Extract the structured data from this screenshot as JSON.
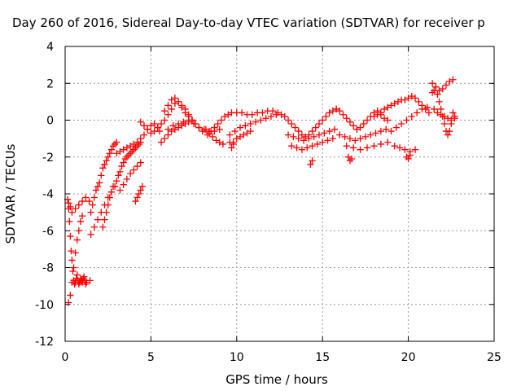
{
  "chart_data": {
    "type": "scatter",
    "title": "Day 260 of 2016, Sidereal Day-to-day VTEC variation (SDTVAR) for receiver p",
    "xlabel": "GPS time / hours",
    "ylabel": "SDTVAR / TECUs",
    "xlim": [
      0,
      25
    ],
    "ylim": [
      -12,
      4
    ],
    "xticks": [
      0,
      5,
      10,
      15,
      20,
      25
    ],
    "yticks": [
      -12,
      -10,
      -8,
      -6,
      -4,
      -2,
      0,
      2,
      4
    ],
    "xtick_labels": [
      "0",
      "5",
      "10",
      "15",
      "20",
      "25"
    ],
    "ytick_labels": [
      "-12",
      "-10",
      "-8",
      "-6",
      "-4",
      "-2",
      "0",
      "2",
      "4"
    ],
    "grid": true,
    "marker": "+",
    "color": "#ff0000",
    "series": [
      {
        "name": "SDTVAR",
        "x": [
          0.15,
          0.2,
          0.25,
          0.3,
          0.35,
          0.4,
          0.45,
          0.5,
          0.55,
          0.6,
          0.65,
          0.7,
          0.75,
          0.8,
          0.85,
          0.9,
          0.95,
          1.0,
          1.05,
          1.1,
          1.15,
          1.2,
          1.25,
          0.2,
          0.3,
          0.4,
          0.5,
          0.6,
          0.7,
          0.8,
          0.9,
          1.0,
          0.2,
          0.3,
          0.4,
          0.6,
          0.8,
          1.0,
          1.2,
          1.4,
          1.45,
          1.5,
          1.6,
          1.7,
          1.8,
          1.9,
          2.0,
          2.1,
          2.2,
          2.3,
          2.4,
          2.5,
          2.6,
          2.7,
          2.8,
          2.9,
          3.0,
          1.5,
          1.7,
          1.9,
          2.1,
          2.3,
          2.5,
          2.7,
          2.9,
          2.2,
          2.3,
          2.4,
          2.5,
          2.6,
          2.7,
          2.8,
          3.0,
          3.1,
          3.2,
          3.3,
          3.4,
          3.5,
          3.6,
          3.7,
          3.8,
          3.9,
          4.0,
          4.1,
          4.2,
          4.3,
          4.4,
          3.2,
          3.4,
          3.6,
          3.8,
          4.0,
          4.2,
          4.4,
          3.0,
          3.2,
          3.4,
          3.6,
          3.8,
          4.0,
          4.2,
          4.4,
          4.6,
          4.8,
          5.0,
          5.2,
          5.4,
          5.5,
          4.1,
          4.2,
          4.3,
          4.4,
          4.5,
          4.4,
          4.6,
          4.8,
          5.0,
          5.2,
          5.4,
          5.6,
          5.8,
          6.0,
          6.2,
          6.4,
          6.6,
          6.8,
          7.0,
          7.2,
          7.4,
          7.6,
          7.8,
          8.0,
          5.6,
          5.8,
          6.0,
          6.2,
          6.4,
          6.6,
          6.8,
          7.0,
          7.2,
          7.4,
          5.8,
          6.0,
          6.2,
          6.4,
          6.6,
          6.8,
          7.0,
          7.2,
          7.4,
          6.0,
          6.3,
          6.6,
          6.9,
          7.2,
          7.5,
          7.8,
          8.1,
          8.4,
          8.7,
          9.0,
          8.2,
          8.4,
          8.6,
          8.8,
          9.0,
          9.2,
          8.3,
          8.5,
          8.7,
          8.9,
          9.1,
          9.3,
          9.5,
          9.7,
          10.0,
          10.3,
          10.6,
          10.9,
          11.2,
          11.5,
          11.8,
          12.1,
          12.4,
          9.6,
          9.9,
          10.2,
          10.5,
          10.8,
          11.1,
          11.4,
          11.7,
          12.0,
          12.3,
          9.8,
          10.0,
          10.2,
          10.4,
          10.6,
          10.8,
          9.6,
          9.7,
          9.8,
          12.6,
          12.8,
          13.0,
          13.2,
          13.4,
          13.6,
          13.8,
          14.0,
          14.2,
          14.4,
          14.6,
          14.8,
          15.0,
          15.2,
          15.4,
          15.6,
          15.8,
          13.0,
          13.3,
          13.6,
          13.9,
          14.2,
          14.5,
          14.8,
          15.1,
          15.4,
          15.7,
          13.2,
          13.5,
          13.8,
          14.1,
          14.4,
          14.7,
          15.0,
          15.3,
          15.6,
          14.3,
          14.4,
          15.8,
          16.0,
          16.2,
          16.4,
          16.6,
          16.8,
          17.0,
          17.2,
          17.4,
          17.6,
          17.8,
          18.0,
          18.2,
          18.4,
          18.6,
          18.8,
          16.0,
          16.3,
          16.6,
          16.9,
          17.2,
          17.5,
          17.8,
          18.1,
          18.4,
          18.7,
          16.4,
          16.8,
          17.2,
          17.6,
          18.0,
          18.4,
          18.8,
          16.5,
          16.6,
          16.7,
          18.0,
          18.2,
          18.4,
          18.6,
          18.8,
          19.0,
          19.2,
          19.4,
          19.6,
          19.8,
          20.0,
          20.2,
          20.4,
          20.6,
          20.8,
          21.0,
          21.2,
          19.0,
          19.3,
          19.6,
          19.9,
          20.2,
          20.5,
          20.8,
          21.1,
          19.2,
          19.5,
          19.8,
          20.1,
          20.4,
          19.9,
          20.0,
          20.1,
          21.4,
          21.5,
          21.6,
          21.7,
          21.8,
          21.9,
          22.0,
          22.1,
          22.2,
          22.3,
          22.4,
          22.5,
          22.6,
          22.7,
          21.5,
          21.7,
          21.9,
          22.1,
          22.3,
          22.5,
          22.7,
          21.4,
          21.6,
          21.8,
          22.0,
          22.2,
          22.4,
          22.6
        ],
        "y": [
          -4.3,
          -4.8,
          -5.5,
          -6.3,
          -7.1,
          -7.6,
          -8.2,
          -8.7,
          -8.9,
          -8.8,
          -8.6,
          -8.4,
          -8.7,
          -8.9,
          -8.8,
          -8.6,
          -8.7,
          -8.8,
          -8.6,
          -8.5,
          -8.7,
          -8.9,
          -8.8,
          -9.9,
          -9.5,
          -8.8,
          -8.0,
          -7.2,
          -6.5,
          -6.0,
          -5.5,
          -5.2,
          -4.5,
          -4.7,
          -5.0,
          -4.8,
          -4.6,
          -4.4,
          -4.2,
          -4.4,
          -8.7,
          -5.0,
          -4.6,
          -4.2,
          -3.8,
          -3.6,
          -3.4,
          -3.0,
          -2.6,
          -2.4,
          -2.2,
          -2.0,
          -1.8,
          -1.6,
          -1.4,
          -1.3,
          -1.2,
          -6.2,
          -5.8,
          -5.4,
          -5.0,
          -4.6,
          -4.2,
          -3.9,
          -3.6,
          -5.8,
          -5.4,
          -5.0,
          -4.6,
          -4.2,
          -3.9,
          -3.6,
          -3.3,
          -3.0,
          -2.8,
          -2.5,
          -2.3,
          -2.1,
          -2.0,
          -1.9,
          -1.8,
          -1.7,
          -1.6,
          -1.5,
          -1.4,
          -1.3,
          -1.2,
          -3.8,
          -3.5,
          -3.2,
          -2.9,
          -2.7,
          -2.5,
          -2.3,
          -1.8,
          -1.7,
          -1.6,
          -1.5,
          -1.4,
          -1.3,
          -1.2,
          -1.0,
          -0.8,
          -0.5,
          -0.3,
          -0.2,
          -0.4,
          -0.6,
          -4.4,
          -4.2,
          -4.0,
          -3.8,
          -3.6,
          -0.1,
          -0.3,
          -0.5,
          -0.7,
          -0.6,
          -0.4,
          -0.2,
          0.0,
          0.3,
          0.6,
          0.9,
          1.0,
          0.8,
          0.6,
          0.3,
          0.0,
          -0.2,
          -0.4,
          -0.6,
          -1.2,
          -1.0,
          -0.8,
          -0.6,
          -0.5,
          -0.4,
          -0.3,
          -0.2,
          -0.1,
          0.0,
          0.5,
          0.8,
          1.1,
          1.2,
          1.0,
          0.7,
          0.4,
          0.2,
          0.0,
          -0.5,
          -0.3,
          -0.2,
          -0.1,
          0.0,
          -0.2,
          -0.4,
          -0.5,
          -0.6,
          -0.6,
          -0.5,
          -0.5,
          -0.7,
          -0.9,
          -1.1,
          -1.2,
          -1.3,
          -0.8,
          -0.6,
          -0.4,
          -0.2,
          0.0,
          0.2,
          0.3,
          0.4,
          0.4,
          0.4,
          0.3,
          0.3,
          0.4,
          0.4,
          0.5,
          0.5,
          0.4,
          -0.8,
          -0.6,
          -0.4,
          -0.3,
          -0.2,
          -0.1,
          0.0,
          0.1,
          0.2,
          0.3,
          -1.2,
          -1.0,
          -0.9,
          -0.8,
          -0.7,
          -0.6,
          -1.2,
          -1.5,
          -1.3,
          0.3,
          0.2,
          0.0,
          -0.2,
          -0.4,
          -0.6,
          -0.8,
          -0.9,
          -0.8,
          -0.6,
          -0.4,
          -0.2,
          0.0,
          0.2,
          0.4,
          0.5,
          0.6,
          -0.8,
          -0.9,
          -1.0,
          -1.1,
          -1.0,
          -0.9,
          -0.8,
          -0.7,
          -0.6,
          -0.5,
          -1.4,
          -1.5,
          -1.6,
          -1.5,
          -1.4,
          -1.3,
          -1.2,
          -1.1,
          -1.0,
          -2.4,
          -2.2,
          0.6,
          0.5,
          0.3,
          0.1,
          -0.1,
          -0.3,
          -0.5,
          -0.4,
          -0.2,
          0.0,
          0.2,
          0.4,
          0.5,
          0.3,
          0.1,
          0.0,
          -0.8,
          -0.9,
          -1.0,
          -1.1,
          -1.0,
          -0.9,
          -0.8,
          -0.7,
          -0.6,
          -0.5,
          -1.4,
          -1.5,
          -1.6,
          -1.5,
          -1.4,
          -1.3,
          -1.2,
          -2.0,
          -2.2,
          -2.1,
          0.2,
          0.3,
          0.4,
          0.6,
          0.7,
          0.8,
          0.9,
          1.0,
          1.1,
          1.1,
          1.2,
          1.3,
          1.2,
          1.0,
          0.8,
          0.6,
          0.4,
          -0.6,
          -0.4,
          -0.2,
          0.0,
          0.2,
          0.4,
          0.6,
          0.7,
          -1.4,
          -1.5,
          -1.6,
          -1.7,
          -1.6,
          -2.0,
          -2.1,
          -1.9,
          1.5,
          1.6,
          1.8,
          1.4,
          1.0,
          0.6,
          0.2,
          -0.2,
          -0.6,
          -0.8,
          -0.6,
          -0.2,
          0.4,
          0.2,
          0.6,
          0.4,
          0.3,
          0.2,
          0.1,
          0.0,
          0.1,
          2.0,
          1.8,
          1.6,
          1.7,
          1.9,
          2.1,
          2.2
        ]
      }
    ]
  }
}
